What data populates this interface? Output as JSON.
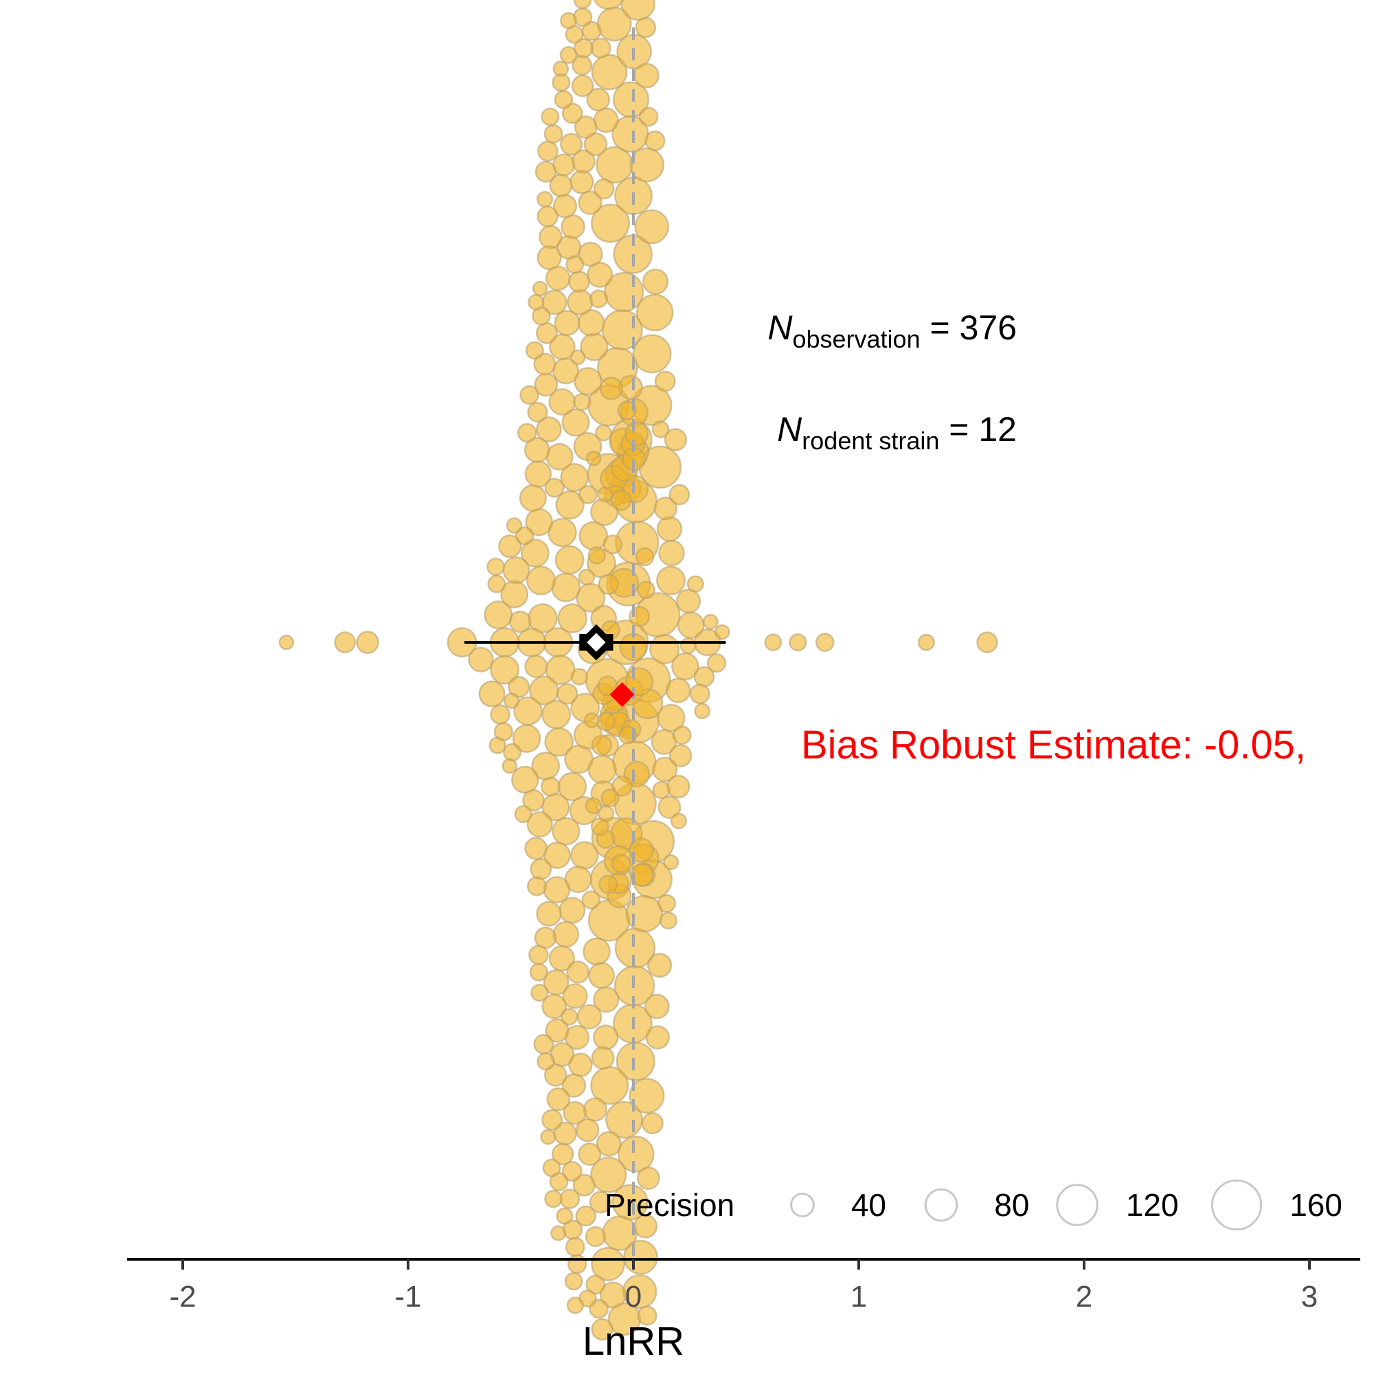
{
  "chart_data": {
    "type": "orchard",
    "xlabel": "LnRR",
    "xlim": [
      -2.25,
      3.25
    ],
    "x_ticks": [
      -2,
      -1,
      0,
      1,
      2,
      3
    ],
    "x_tick_labels": [
      "-2",
      "-1",
      "0",
      "1",
      "2",
      "3"
    ],
    "reference_line_x": 0,
    "point_color": "#f0b429",
    "red_color": "#ff0000",
    "estimate": {
      "mean": -0.165,
      "ci": [
        -0.24,
        -0.09
      ],
      "pi": [
        -0.75,
        0.41
      ]
    },
    "bias_robust_estimate": {
      "value": -0.05,
      "label": "Bias Robust Estimate: -0.05,"
    },
    "annotations": {
      "n_observation": {
        "N": "N",
        "sub": "observation",
        "rest": " = 376"
      },
      "n_strain": {
        "N": "N",
        "sub": "rodent strain",
        "rest": " = 12"
      }
    },
    "legend": {
      "title": "Precision",
      "sizes": [
        40,
        80,
        120,
        160
      ],
      "labels": [
        "40",
        "80",
        "120",
        "160"
      ]
    },
    "n_points": 376,
    "points_x_range": [
      -1.54,
      1.57
    ]
  }
}
